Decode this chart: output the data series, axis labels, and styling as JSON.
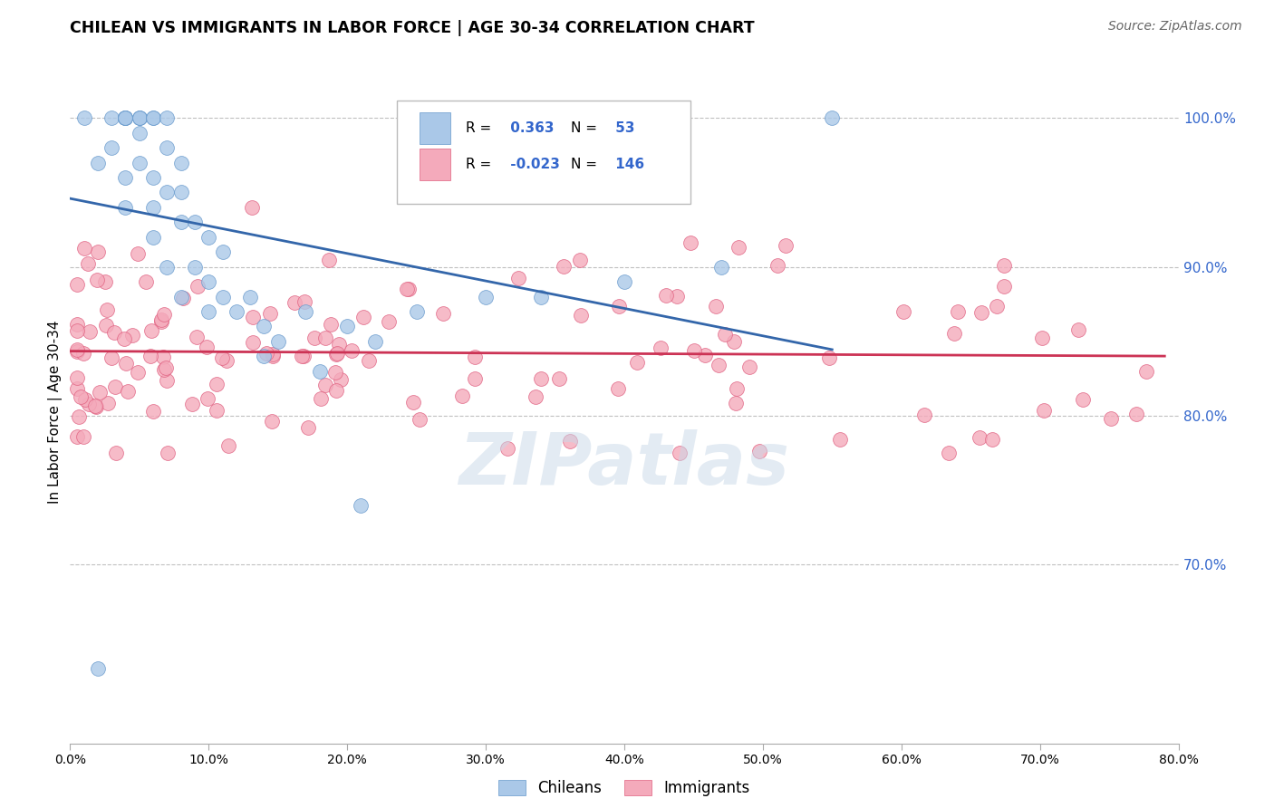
{
  "title": "CHILEAN VS IMMIGRANTS IN LABOR FORCE | AGE 30-34 CORRELATION CHART",
  "source": "Source: ZipAtlas.com",
  "ylabel": "In Labor Force | Age 30-34",
  "ylabel_right_ticks": [
    "100.0%",
    "90.0%",
    "80.0%",
    "70.0%"
  ],
  "ylabel_right_vals": [
    1.0,
    0.9,
    0.8,
    0.7
  ],
  "xmin": 0.0,
  "xmax": 0.8,
  "ymin": 0.58,
  "ymax": 1.025,
  "r_chilean": 0.363,
  "n_chilean": 53,
  "r_immigrant": -0.023,
  "n_immigrant": 146,
  "blue_color": "#aac8e8",
  "pink_color": "#f4aabb",
  "blue_edge_color": "#6699cc",
  "pink_edge_color": "#e06080",
  "blue_line_color": "#3366aa",
  "pink_line_color": "#cc3355",
  "legend_blue_text_color": "#3366cc",
  "watermark": "ZIPatlas"
}
